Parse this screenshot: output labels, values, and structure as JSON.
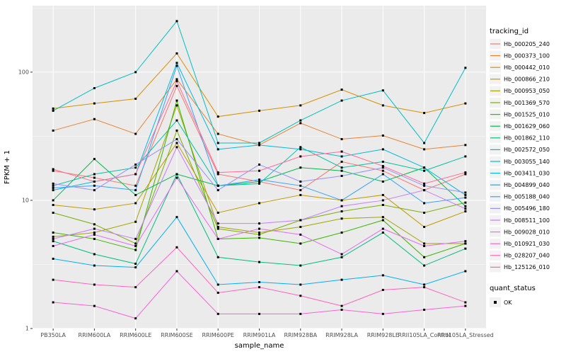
{
  "chart_data": {
    "type": "line",
    "title": "",
    "xlabel": "sample_name",
    "ylabel": "FPKM + 1",
    "y_scale": "log10",
    "ylim": [
      1,
      330
    ],
    "y_ticks": [
      1,
      10,
      100
    ],
    "y_tick_labels": [
      "1",
      "10",
      "100"
    ],
    "y_minor": [
      3.1623,
      31.623,
      316.23
    ],
    "grid": true,
    "panel_bg": "#EBEBEB",
    "gridline_color": "#FFFFFF",
    "tick_label_color": "#4D4D4D",
    "point_shape": "filled-square",
    "point_color": "#000000",
    "legend_title": "tracking_id",
    "legend_position": "right",
    "x_categories": [
      "PB350LA",
      "RRIM600LA",
      "RRIM600LE",
      "RRIM600SE",
      "RRIM600PE",
      "RRIM901LA",
      "RRIM928BA",
      "RRIM928LA",
      "RRIM928LE",
      "RRII105LA_Control",
      "RRII105LA_Stressed"
    ],
    "series": [
      {
        "name": "Hb_000205_240",
        "color": "#F8766D",
        "values": [
          17,
          15,
          13,
          78,
          16,
          14,
          12,
          20,
          17,
          12,
          16
        ]
      },
      {
        "name": "Hb_000373_100",
        "color": "#EA8331",
        "values": [
          35,
          43,
          33,
          88,
          33,
          27,
          40,
          30,
          32,
          25,
          27
        ]
      },
      {
        "name": "Hb_000442_010",
        "color": "#D89000",
        "values": [
          52,
          57,
          62,
          140,
          45,
          50,
          55,
          73,
          55,
          48,
          57
        ]
      },
      {
        "name": "Hb_000866_210",
        "color": "#C09B00",
        "values": [
          9.2,
          8.5,
          9.5,
          28,
          8,
          9.5,
          11,
          10,
          11,
          6.2,
          8.2
        ]
      },
      {
        "name": "Hb_000953_050",
        "color": "#A3A500",
        "values": [
          5.2,
          5.6,
          6.8,
          55,
          6.2,
          5.6,
          6.2,
          7.2,
          7.4,
          4.6,
          4.6
        ]
      },
      {
        "name": "Hb_001369_570",
        "color": "#7CAE00",
        "values": [
          8,
          6.5,
          4.6,
          35,
          6,
          5.4,
          7,
          8.2,
          9.2,
          8,
          9.6
        ]
      },
      {
        "name": "Hb_001525_010",
        "color": "#39B600",
        "values": [
          5.6,
          5,
          4.1,
          60,
          5,
          5.1,
          4.6,
          5.6,
          7,
          3.6,
          4.6
        ]
      },
      {
        "name": "Hb_001629_060",
        "color": "#00BB4E",
        "values": [
          10,
          21,
          11,
          16,
          13,
          14,
          18,
          17,
          14,
          18,
          9
        ]
      },
      {
        "name": "Hb_001862_110",
        "color": "#00BF7D",
        "values": [
          4.8,
          3.8,
          3.2,
          16,
          3.6,
          3.3,
          3.1,
          3.6,
          5.6,
          3.1,
          4.2
        ]
      },
      {
        "name": "Hb_002572_050",
        "color": "#00C1A3",
        "values": [
          13,
          16,
          18,
          42,
          13,
          13.5,
          26,
          18,
          20,
          17,
          22
        ]
      },
      {
        "name": "Hb_003055_140",
        "color": "#00BFC4",
        "values": [
          50,
          75,
          100,
          250,
          28,
          28,
          42,
          60,
          72,
          28,
          108
        ]
      },
      {
        "name": "Hb_003411_030",
        "color": "#00BAE0",
        "values": [
          12,
          14,
          16,
          118,
          25,
          27,
          25,
          22,
          25,
          18,
          11
        ]
      },
      {
        "name": "Hb_004899_040",
        "color": "#00B0F6",
        "values": [
          3.5,
          3.1,
          3.0,
          7.4,
          2.2,
          2.3,
          2.2,
          2.4,
          2.6,
          2.2,
          2.8
        ]
      },
      {
        "name": "Hb_005188_040",
        "color": "#35A2FF",
        "values": [
          12.5,
          13,
          12,
          112,
          13,
          14.5,
          13,
          10,
          16,
          9.5,
          10.5
        ]
      },
      {
        "name": "Hb_005496_180",
        "color": "#9590FF",
        "values": [
          13.5,
          12,
          19,
          30,
          12,
          19,
          14,
          15.5,
          18,
          13,
          11.5
        ]
      },
      {
        "name": "Hb_008511_100",
        "color": "#C77CFF",
        "values": [
          5,
          6,
          5,
          26,
          6.6,
          6.6,
          7,
          9,
          10,
          12,
          8.6
        ]
      },
      {
        "name": "Hb_009028_010",
        "color": "#E76BF3",
        "values": [
          4.4,
          5.4,
          4.4,
          15,
          5,
          6,
          5.4,
          3.8,
          6,
          4.4,
          4.8
        ]
      },
      {
        "name": "Hb_010921_030",
        "color": "#FA62DB",
        "values": [
          1.6,
          1.5,
          1.2,
          2.8,
          1.3,
          1.3,
          1.3,
          1.4,
          1.3,
          1.4,
          1.5
        ]
      },
      {
        "name": "Hb_028207_040",
        "color": "#FF62BC",
        "values": [
          2.4,
          2.2,
          2.1,
          4.3,
          1.9,
          2.1,
          1.8,
          1.5,
          2.0,
          2.1,
          1.6
        ]
      },
      {
        "name": "Hb_125126_010",
        "color": "#FF6A98",
        "values": [
          17.5,
          14,
          16,
          85,
          16.5,
          17,
          22,
          24,
          18.5,
          13.5,
          16.5
        ]
      }
    ],
    "quant_legend": {
      "title": "quant_status",
      "items": [
        "OK"
      ],
      "key_shape": "square",
      "key_color": "#000000"
    }
  }
}
